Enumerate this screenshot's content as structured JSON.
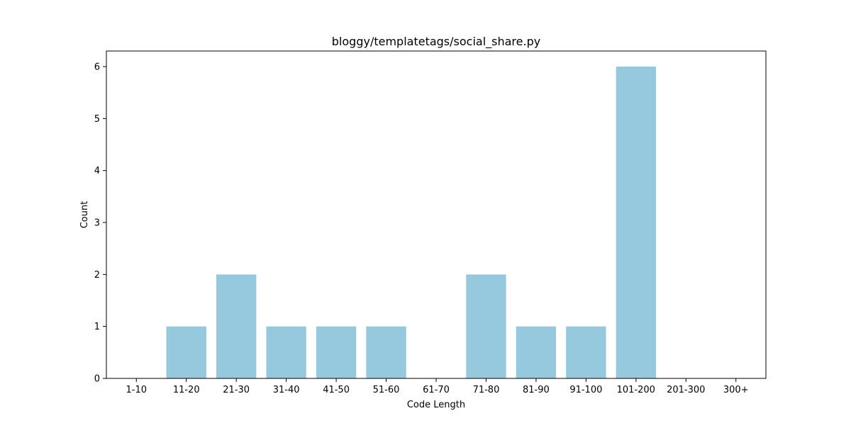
{
  "chart_data": {
    "type": "bar",
    "title": "bloggy/templatetags/social_share.py",
    "xlabel": "Code Length",
    "ylabel": "Count",
    "categories": [
      "1-10",
      "11-20",
      "21-30",
      "31-40",
      "41-50",
      "51-60",
      "61-70",
      "71-80",
      "81-90",
      "91-100",
      "101-200",
      "201-300",
      "300+"
    ],
    "values": [
      0,
      1,
      2,
      1,
      1,
      1,
      0,
      2,
      1,
      1,
      6,
      0,
      0
    ],
    "yticks": [
      0,
      1,
      2,
      3,
      4,
      5,
      6
    ],
    "ylim": [
      0,
      6.3
    ],
    "grid": false,
    "legend": "none",
    "bar_color": "#96c9dd"
  }
}
